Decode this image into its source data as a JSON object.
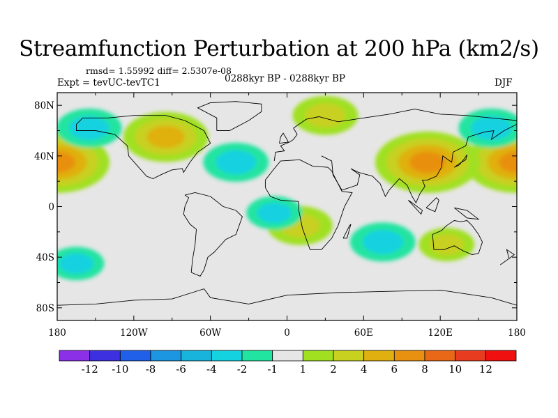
{
  "title": "Streamfunction Perturbation at 200 hPa (km2/s)",
  "stats": "rmsd= 1.55992 diff= 2.5307e-08",
  "experiment": "Expt = tevUC-tevTC1",
  "period": "0288kyr BP - 0288kyr BP",
  "season": "DJF",
  "chart_data": {
    "type": "heatmap",
    "title": "Streamfunction Perturbation at 200 hPa (km2/s)",
    "units": "km2/s",
    "xlabel": "",
    "ylabel": "",
    "xlim": [
      -180,
      180
    ],
    "ylim": [
      -90,
      90
    ],
    "x_ticks": [
      {
        "value": -180,
        "label": "180"
      },
      {
        "value": -120,
        "label": "120W"
      },
      {
        "value": -60,
        "label": "60W"
      },
      {
        "value": 0,
        "label": "0"
      },
      {
        "value": 60,
        "label": "60E"
      },
      {
        "value": 120,
        "label": "120E"
      },
      {
        "value": 180,
        "label": "180"
      }
    ],
    "y_ticks": [
      {
        "value": 80,
        "label": "80N"
      },
      {
        "value": 40,
        "label": "40N"
      },
      {
        "value": 0,
        "label": "0"
      },
      {
        "value": -40,
        "label": "40S"
      },
      {
        "value": -80,
        "label": "80S"
      }
    ],
    "contour_levels": [
      -12,
      -10,
      -8,
      -6,
      -4,
      -2,
      -1,
      1,
      2,
      4,
      6,
      8,
      10,
      12
    ],
    "level_labels": [
      "-12",
      "-10",
      "-8",
      "-6",
      "-4",
      "-2",
      "-1",
      "1",
      "2",
      "4",
      "6",
      "8",
      "10",
      "12"
    ],
    "colors": [
      "#8c30e8",
      "#3c30e0",
      "#2060e8",
      "#1c96e0",
      "#18b4dc",
      "#14d2e0",
      "#20e4a0",
      "#e6e6e6",
      "#a0e020",
      "#c8d020",
      "#e0b010",
      "#e89010",
      "#e86818",
      "#e83c20",
      "#f01010"
    ],
    "features": [
      {
        "name": "dateline positive center north pacific west",
        "lon": -180,
        "lat": 35,
        "value": 7
      },
      {
        "name": "dateline positive center north pacific east",
        "lon": 180,
        "lat": 35,
        "value": 7
      },
      {
        "name": "north america positive high",
        "lon": -95,
        "lat": 55,
        "value": 5
      },
      {
        "name": "central asia positive",
        "lon": 110,
        "lat": 35,
        "value": 7
      },
      {
        "name": "arctic north europe positive",
        "lon": 30,
        "lat": 72,
        "value": 3
      },
      {
        "name": "north atlantic negative band",
        "lon": -40,
        "lat": 35,
        "value": -3
      },
      {
        "name": "canadian arctic negative",
        "lon": -155,
        "lat": 62,
        "value": -3
      },
      {
        "name": "north pacific negative east",
        "lon": 160,
        "lat": 62,
        "value": -3
      },
      {
        "name": "tropical atlantic africa positive",
        "lon": 10,
        "lat": -15,
        "value": 3
      },
      {
        "name": "indian ocean south negative",
        "lon": 75,
        "lat": -28,
        "value": -3
      },
      {
        "name": "south atlantic negative small",
        "lon": -10,
        "lat": -5,
        "value": -2
      },
      {
        "name": "south pacific negative",
        "lon": -165,
        "lat": -45,
        "value": -2
      },
      {
        "name": "australia positive",
        "lon": 125,
        "lat": -30,
        "value": 2
      }
    ]
  }
}
